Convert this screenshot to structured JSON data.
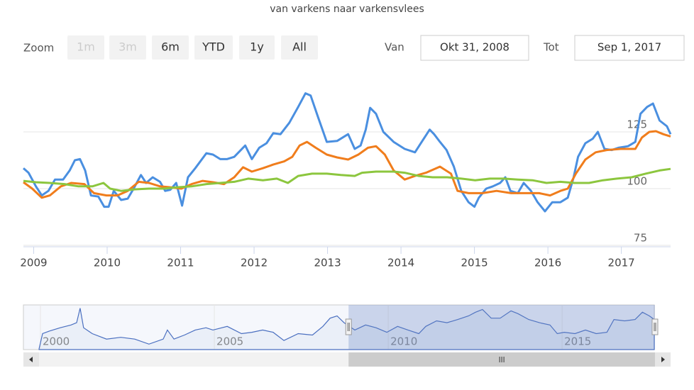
{
  "title": "van varkens naar varkensvlees",
  "range_selector": {
    "zoom_label": "Zoom",
    "buttons": [
      "1m",
      "3m",
      "6m",
      "YTD",
      "1y",
      "All"
    ],
    "disabled": [
      "1m",
      "3m"
    ],
    "from_label": "Van",
    "from": "Okt 31, 2008",
    "to_label": "Tot",
    "to": "Sep 1, 2017"
  },
  "chart_data": [
    {
      "type": "line",
      "xlim": [
        2008.86,
        2017.67
      ],
      "xticks": [
        2009,
        2010,
        2011,
        2012,
        2013,
        2014,
        2015,
        2016,
        2017
      ],
      "ylim": [
        75,
        150
      ],
      "yticks": [
        75,
        100,
        125
      ],
      "grid": true,
      "series": [
        {
          "color": "#4a8fe0",
          "x": [
            2008.86,
            2008.93,
            2009.03,
            2009.11,
            2009.2,
            2009.29,
            2009.4,
            2009.49,
            2009.56,
            2009.63,
            2009.7,
            2009.78,
            2009.88,
            2009.96,
            2010.02,
            2010.09,
            2010.19,
            2010.28,
            2010.36,
            2010.46,
            2010.53,
            2010.62,
            2010.72,
            2010.79,
            2010.86,
            2010.94,
            2011.02,
            2011.1,
            2011.2,
            2011.35,
            2011.44,
            2011.54,
            2011.63,
            2011.73,
            2011.88,
            2011.97,
            2012.07,
            2012.17,
            2012.26,
            2012.36,
            2012.48,
            2012.6,
            2012.7,
            2012.77,
            2012.87,
            2012.99,
            2013.13,
            2013.28,
            2013.37,
            2013.45,
            2013.52,
            2013.58,
            2013.66,
            2013.76,
            2013.9,
            2014.05,
            2014.19,
            2014.29,
            2014.39,
            2014.45,
            2014.53,
            2014.62,
            2014.72,
            2014.82,
            2014.92,
            2015.0,
            2015.06,
            2015.16,
            2015.25,
            2015.35,
            2015.42,
            2015.49,
            2015.59,
            2015.67,
            2015.77,
            2015.86,
            2015.96,
            2016.06,
            2016.17,
            2016.27,
            2016.35,
            2016.41,
            2016.51,
            2016.61,
            2016.68,
            2016.77,
            2016.87,
            2016.96,
            2017.09,
            2017.19,
            2017.26,
            2017.35,
            2017.43,
            2017.52,
            2017.62,
            2017.67
          ],
          "values": [
            109,
            107,
            101,
            97,
            99,
            104,
            104,
            108,
            112.5,
            113,
            108,
            97,
            96.5,
            92,
            92,
            99,
            95,
            95.6,
            100,
            106,
            102.5,
            105,
            103,
            99,
            99.5,
            102.5,
            92.5,
            105,
            109,
            115.6,
            115,
            113,
            113,
            114,
            119,
            113,
            118,
            120,
            124.4,
            124,
            129,
            136,
            142,
            141,
            131.6,
            120.6,
            121,
            124,
            117.5,
            119,
            126,
            135.6,
            133,
            125,
            120.6,
            117.5,
            116,
            121,
            126,
            124,
            120.6,
            117,
            109.7,
            99,
            94,
            92,
            96,
            100,
            101,
            102.5,
            105,
            99,
            98,
            102.5,
            99,
            94,
            90,
            94,
            94,
            96,
            105,
            114,
            120,
            122,
            125,
            117.5,
            117,
            118,
            118.7,
            120.6,
            133,
            136,
            137.5,
            130,
            127.5,
            124
          ]
        },
        {
          "color": "#f07d1c",
          "x": [
            2008.86,
            2008.98,
            2009.11,
            2009.22,
            2009.37,
            2009.51,
            2009.69,
            2009.82,
            2009.99,
            2010.14,
            2010.28,
            2010.43,
            2010.57,
            2010.72,
            2010.86,
            2011.01,
            2011.15,
            2011.3,
            2011.44,
            2011.59,
            2011.73,
            2011.85,
            2011.97,
            2012.12,
            2012.26,
            2012.41,
            2012.52,
            2012.62,
            2012.72,
            2012.84,
            2012.99,
            2013.13,
            2013.28,
            2013.42,
            2013.55,
            2013.66,
            2013.78,
            2013.9,
            2014.05,
            2014.19,
            2014.34,
            2014.53,
            2014.68,
            2014.77,
            2014.92,
            2015.11,
            2015.3,
            2015.5,
            2015.69,
            2015.88,
            2016.03,
            2016.17,
            2016.27,
            2016.38,
            2016.51,
            2016.65,
            2016.8,
            2016.99,
            2017.19,
            2017.28,
            2017.38,
            2017.47,
            2017.57,
            2017.67
          ],
          "values": [
            102.8,
            100,
            96,
            97,
            101,
            102.5,
            102,
            98,
            97,
            97,
            99,
            103,
            102.5,
            101,
            100.6,
            100,
            102,
            103.4,
            102.8,
            102,
            105,
            109.4,
            107.5,
            109,
            110.6,
            112,
            114,
            119,
            120.6,
            118,
            115,
            113.75,
            112.8,
            115,
            118,
            118.7,
            115,
            108,
            104,
            105.6,
            107,
            109.7,
            106.6,
            99,
            98,
            98,
            99,
            98,
            98,
            98,
            97,
            99,
            100,
            106.6,
            112.8,
            116,
            117,
            117.5,
            117.5,
            122.5,
            125,
            125.3,
            124,
            123
          ]
        },
        {
          "color": "#8cc63e",
          "x": [
            2008.86,
            2009.03,
            2009.22,
            2009.42,
            2009.61,
            2009.8,
            2009.95,
            2010.04,
            2010.19,
            2010.38,
            2010.57,
            2010.77,
            2010.96,
            2011.15,
            2011.35,
            2011.54,
            2011.73,
            2011.92,
            2012.12,
            2012.31,
            2012.46,
            2012.6,
            2012.79,
            2012.99,
            2013.18,
            2013.37,
            2013.47,
            2013.66,
            2013.9,
            2014.05,
            2014.24,
            2014.43,
            2014.63,
            2014.82,
            2015.01,
            2015.21,
            2015.4,
            2015.59,
            2015.79,
            2015.98,
            2016.17,
            2016.36,
            2016.56,
            2016.75,
            2016.94,
            2017.14,
            2017.33,
            2017.52,
            2017.67
          ],
          "values": [
            103.4,
            102.8,
            102.5,
            102,
            101,
            101,
            102.5,
            100,
            99,
            99.7,
            100,
            100,
            100.6,
            101,
            102,
            102.5,
            103,
            104.4,
            103.7,
            104.4,
            102.5,
            105.6,
            106.6,
            106.6,
            106,
            105.6,
            107,
            107.5,
            107.5,
            107,
            105.6,
            105,
            105,
            104.4,
            103.7,
            104.4,
            104.4,
            104,
            103.7,
            102.5,
            103,
            102.5,
            102.5,
            103.7,
            104.4,
            105,
            106.6,
            108,
            108.7
          ]
        }
      ]
    },
    {
      "type": "area",
      "xlim": [
        1999.51,
        2017.65
      ],
      "xticks": [
        2000,
        2005,
        2010,
        2015
      ],
      "ylim": [
        55,
        150
      ],
      "color": "#4a6fc0",
      "x": [
        1999.96,
        2000.06,
        2000.27,
        2000.57,
        2000.88,
        2001.04,
        2001.14,
        2001.24,
        2001.49,
        2001.9,
        2002.31,
        2002.71,
        2003.12,
        2003.53,
        2003.65,
        2003.84,
        2004.14,
        2004.45,
        2004.76,
        2004.96,
        2005.37,
        2005.78,
        2006.08,
        2006.39,
        2006.69,
        2007.0,
        2007.41,
        2007.82,
        2008.12,
        2008.33,
        2008.53,
        2008.73,
        2009.04,
        2009.35,
        2009.65,
        2009.96,
        2010.27,
        2010.57,
        2010.88,
        2011.08,
        2011.39,
        2011.69,
        2012.0,
        2012.31,
        2012.51,
        2012.71,
        2012.96,
        2013.22,
        2013.53,
        2013.73,
        2014.04,
        2014.35,
        2014.65,
        2014.86,
        2015.06,
        2015.37,
        2015.67,
        2015.98,
        2016.29,
        2016.49,
        2016.8,
        2017.1,
        2017.31,
        2017.51,
        2017.65
      ],
      "values": [
        57,
        90,
        96,
        103,
        109,
        114,
        146,
        103,
        90,
        78,
        82,
        78,
        67,
        78,
        98,
        78,
        87,
        98,
        103,
        98,
        106,
        90,
        93,
        98,
        93,
        75,
        90,
        87,
        106,
        124,
        129,
        114,
        98,
        109,
        103,
        93,
        106,
        98,
        90,
        106,
        118,
        114,
        121,
        129,
        137,
        143,
        124,
        124,
        140,
        134,
        121,
        114,
        109,
        90,
        93,
        90,
        98,
        90,
        93,
        121,
        118,
        121,
        137,
        129,
        121
      ]
    }
  ]
}
